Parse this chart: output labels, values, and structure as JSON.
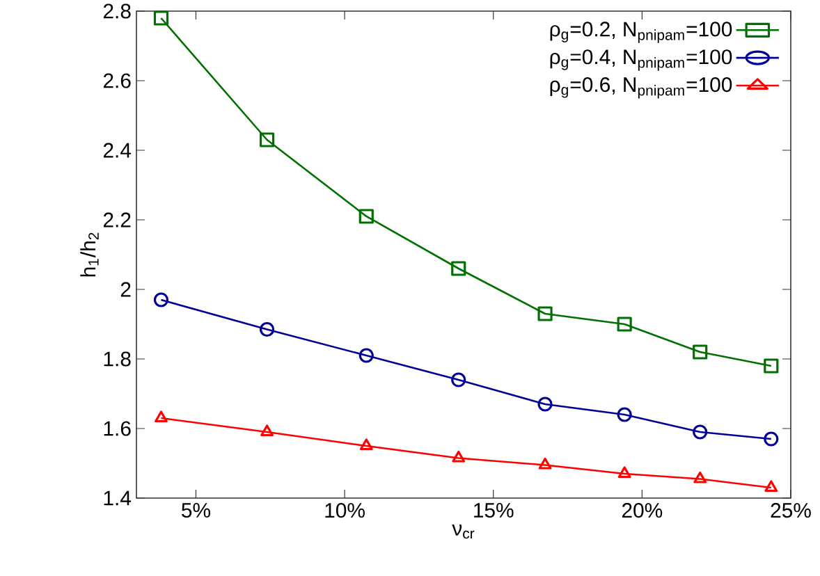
{
  "chart_data": {
    "type": "line",
    "xlabel": "ν$_{cr}$",
    "ylabel": "h$_{1}$/h$_{2}$",
    "x": [
      3.83,
      7.39,
      10.73,
      13.83,
      16.74,
      19.41,
      21.95,
      24.34
    ],
    "xlim": [
      3,
      25
    ],
    "xticks": [
      {
        "value": 5,
        "label": "5%"
      },
      {
        "value": 10,
        "label": "10%"
      },
      {
        "value": 15,
        "label": "15%"
      },
      {
        "value": 20,
        "label": "20%"
      },
      {
        "value": 25,
        "label": "25%"
      }
    ],
    "ylim": [
      1.4,
      2.8
    ],
    "yticks": [
      1.4,
      1.6,
      1.8,
      2,
      2.2,
      2.4,
      2.6,
      2.8
    ],
    "legend": "top right",
    "line_style": "solid",
    "series": [
      {
        "name": "ρ$_{g}$=0.2, N$_{pnipam}$=100",
        "color": "#007000",
        "marker": "square",
        "values": [
          2.78,
          2.43,
          2.21,
          2.06,
          1.93,
          1.9,
          1.82,
          1.78
        ]
      },
      {
        "name": "ρ$_{g}$=0.4, N$_{pnipam}$=100",
        "color": "#000099",
        "marker": "circle",
        "values": [
          1.97,
          1.885,
          1.81,
          1.74,
          1.67,
          1.64,
          1.59,
          1.57
        ]
      },
      {
        "name": "ρ$_{g}$=0.6, N$_{pnipam}$=100",
        "color": "#ff0000",
        "marker": "triangle",
        "values": [
          1.63,
          1.59,
          1.55,
          1.515,
          1.495,
          1.47,
          1.455,
          1.43
        ]
      }
    ]
  }
}
